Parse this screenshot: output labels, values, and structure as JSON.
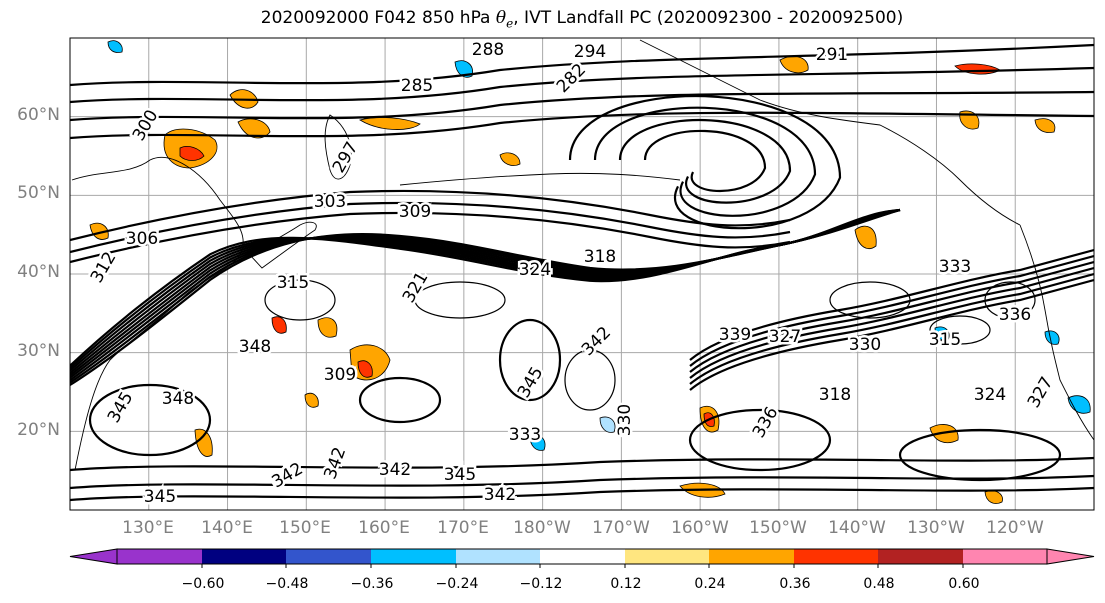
{
  "title": {
    "prefix": "2020092000 F042 850 hPa ",
    "symbol": "θ",
    "symbol_sub": "e",
    "suffix": ", IVT Landfall PC (2020092300 - 2020092500)"
  },
  "map": {
    "projection": "PlateCarree",
    "lat_range": [
      10,
      70
    ],
    "lon_range_deg_east": [
      120,
      250
    ],
    "grid": true,
    "lat_ticks": [
      "60°N",
      "50°N",
      "40°N",
      "30°N",
      "20°N"
    ],
    "lon_ticks": [
      "130°E",
      "140°E",
      "150°E",
      "160°E",
      "170°E",
      "180°W",
      "170°W",
      "160°W",
      "150°W",
      "140°W",
      "130°W",
      "120°W"
    ],
    "contour_labels": [
      "288",
      "294",
      "291",
      "285",
      "282",
      "297",
      "300",
      "303",
      "306",
      "309",
      "312",
      "315",
      "318",
      "321",
      "324",
      "327",
      "330",
      "333",
      "336",
      "339",
      "342",
      "345",
      "348",
      "309",
      "315",
      "318",
      "324",
      "327",
      "330",
      "333",
      "336",
      "342",
      "345",
      "342",
      "345",
      "342",
      "342",
      "345",
      "348"
    ],
    "contour_color": "#000000",
    "fill_field": "IVT Landfall PC"
  },
  "colorbar": {
    "colors": [
      "#9933cc",
      "#000080",
      "#3355cc",
      "#00bfff",
      "#b0e2ff",
      "#ffffff",
      "#ffe680",
      "#ffa500",
      "#ff3300",
      "#b22222",
      "#ff85b0"
    ],
    "bounds": [
      -0.6,
      -0.48,
      -0.36,
      -0.24,
      -0.12,
      0.12,
      0.24,
      0.36,
      0.48,
      0.6
    ],
    "tick_labels": [
      "−0.60",
      "−0.48",
      "−0.36",
      "−0.24",
      "−0.12",
      "0.12",
      "0.24",
      "0.36",
      "0.48",
      "0.60"
    ],
    "extend": "both"
  }
}
